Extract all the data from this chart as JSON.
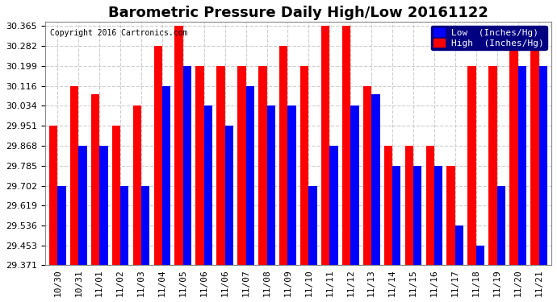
{
  "title": "Barometric Pressure Daily High/Low 20161122",
  "copyright": "Copyright 2016 Cartronics.com",
  "legend_low": "Low  (Inches/Hg)",
  "legend_high": "High  (Inches/Hg)",
  "categories": [
    "10/30",
    "10/31",
    "11/01",
    "11/02",
    "11/03",
    "11/04",
    "11/05",
    "11/06",
    "11/06",
    "11/07",
    "11/08",
    "11/09",
    "11/10",
    "11/11",
    "11/12",
    "11/13",
    "11/14",
    "11/15",
    "11/16",
    "11/17",
    "11/18",
    "11/19",
    "11/20",
    "11/21"
  ],
  "low_values": [
    29.702,
    29.868,
    29.868,
    29.702,
    29.702,
    30.116,
    30.199,
    30.034,
    29.951,
    30.116,
    30.034,
    30.034,
    29.702,
    29.868,
    30.034,
    30.082,
    29.785,
    29.785,
    29.785,
    29.536,
    29.453,
    29.702,
    30.199,
    30.199
  ],
  "high_values": [
    29.951,
    30.116,
    30.082,
    29.951,
    30.034,
    30.282,
    30.365,
    30.199,
    30.199,
    30.199,
    30.199,
    30.282,
    30.199,
    30.365,
    30.365,
    30.116,
    29.868,
    29.868,
    29.868,
    29.785,
    30.199,
    30.199,
    30.282,
    30.282
  ],
  "ylim_min": 29.371,
  "ylim_max": 30.365,
  "yticks": [
    29.371,
    29.453,
    29.536,
    29.619,
    29.702,
    29.785,
    29.868,
    29.951,
    30.034,
    30.116,
    30.199,
    30.282,
    30.365
  ],
  "bar_color_low": "#0000ff",
  "bar_color_high": "#ff0000",
  "background_color": "#ffffff",
  "grid_color": "#cccccc",
  "title_fontsize": 13,
  "tick_fontsize": 8,
  "legend_fontsize": 8
}
